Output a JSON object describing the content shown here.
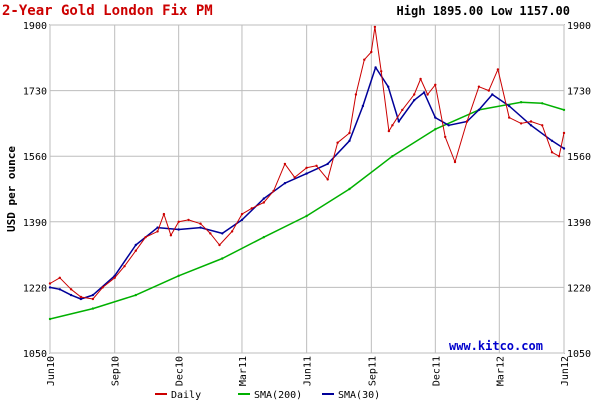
{
  "chart_data": {
    "type": "line",
    "title": "2-Year Gold London Fix PM",
    "summary": {
      "high_label": "High",
      "high": "1895.00",
      "low_label": "Low",
      "low": "1157.00"
    },
    "ylabel": "USD per ounce",
    "ylim": [
      1050,
      1900
    ],
    "yticks": [
      "1050",
      "1220",
      "1390",
      "1560",
      "1730",
      "1900"
    ],
    "xlim": [
      "2010-06-01",
      "2012-06-01"
    ],
    "xticks": [
      {
        "label": "Jun10",
        "date": "2010-06-01"
      },
      {
        "label": "Sep10",
        "date": "2010-09-01"
      },
      {
        "label": "Dec10",
        "date": "2010-12-01"
      },
      {
        "label": "Mar11",
        "date": "2011-03-01"
      },
      {
        "label": "Jun11",
        "date": "2011-06-01"
      },
      {
        "label": "Sep11",
        "date": "2011-09-01"
      },
      {
        "label": "Dec11",
        "date": "2011-12-01"
      },
      {
        "label": "Mar12",
        "date": "2012-03-01"
      },
      {
        "label": "Jun12",
        "date": "2012-06-01"
      }
    ],
    "grid": true,
    "watermark": "www.kitco.com",
    "legend_position": "bottom",
    "series": [
      {
        "name": "Daily",
        "color": "#cc0000",
        "x": [
          "2010-06-01",
          "2010-06-15",
          "2010-07-01",
          "2010-07-15",
          "2010-08-01",
          "2010-08-15",
          "2010-09-01",
          "2010-09-15",
          "2010-10-01",
          "2010-10-15",
          "2010-11-01",
          "2010-11-10",
          "2010-11-20",
          "2010-12-01",
          "2010-12-15",
          "2011-01-01",
          "2011-01-15",
          "2011-01-28",
          "2011-02-15",
          "2011-03-01",
          "2011-03-15",
          "2011-04-01",
          "2011-04-15",
          "2011-05-01",
          "2011-05-15",
          "2011-06-01",
          "2011-06-15",
          "2011-07-01",
          "2011-07-15",
          "2011-08-01",
          "2011-08-10",
          "2011-08-22",
          "2011-09-01",
          "2011-09-06",
          "2011-09-15",
          "2011-09-26",
          "2011-10-01",
          "2011-10-15",
          "2011-11-01",
          "2011-11-10",
          "2011-11-20",
          "2011-12-01",
          "2011-12-15",
          "2011-12-29",
          "2012-01-15",
          "2012-02-01",
          "2012-02-15",
          "2012-02-28",
          "2012-03-15",
          "2012-04-01",
          "2012-04-15",
          "2012-05-01",
          "2012-05-15",
          "2012-05-25",
          "2012-06-01"
        ],
        "values": [
          1230,
          1245,
          1215,
          1195,
          1190,
          1220,
          1245,
          1275,
          1315,
          1350,
          1365,
          1410,
          1355,
          1390,
          1395,
          1385,
          1360,
          1330,
          1365,
          1410,
          1425,
          1440,
          1470,
          1540,
          1505,
          1530,
          1535,
          1500,
          1595,
          1620,
          1720,
          1810,
          1830,
          1895,
          1780,
          1625,
          1640,
          1680,
          1720,
          1760,
          1720,
          1745,
          1610,
          1545,
          1650,
          1740,
          1730,
          1785,
          1660,
          1645,
          1650,
          1640,
          1570,
          1560,
          1620
        ]
      },
      {
        "name": "SMA(200)",
        "color": "#00b000",
        "x": [
          "2010-06-01",
          "2010-08-01",
          "2010-10-01",
          "2010-12-01",
          "2011-02-01",
          "2011-04-01",
          "2011-06-01",
          "2011-08-01",
          "2011-10-01",
          "2011-12-01",
          "2012-02-01",
          "2012-04-01",
          "2012-05-01",
          "2012-06-01"
        ],
        "values": [
          1138,
          1165,
          1200,
          1250,
          1295,
          1350,
          1405,
          1475,
          1560,
          1630,
          1680,
          1700,
          1697,
          1680
        ]
      },
      {
        "name": "SMA(30)",
        "color": "#000099",
        "x": [
          "2010-06-01",
          "2010-06-15",
          "2010-07-01",
          "2010-07-15",
          "2010-08-01",
          "2010-09-01",
          "2010-10-01",
          "2010-11-01",
          "2010-12-01",
          "2011-01-01",
          "2011-02-01",
          "2011-03-01",
          "2011-04-01",
          "2011-05-01",
          "2011-06-01",
          "2011-07-01",
          "2011-08-01",
          "2011-08-20",
          "2011-09-07",
          "2011-09-25",
          "2011-10-10",
          "2011-11-01",
          "2011-11-15",
          "2011-12-01",
          "2011-12-20",
          "2012-01-15",
          "2012-02-01",
          "2012-02-20",
          "2012-03-15",
          "2012-04-15",
          "2012-05-15",
          "2012-06-01"
        ],
        "values": [
          1220,
          1215,
          1200,
          1190,
          1200,
          1250,
          1330,
          1375,
          1370,
          1375,
          1360,
          1395,
          1450,
          1490,
          1515,
          1540,
          1600,
          1690,
          1790,
          1740,
          1650,
          1705,
          1725,
          1660,
          1640,
          1650,
          1680,
          1720,
          1690,
          1640,
          1600,
          1580
        ]
      }
    ]
  }
}
